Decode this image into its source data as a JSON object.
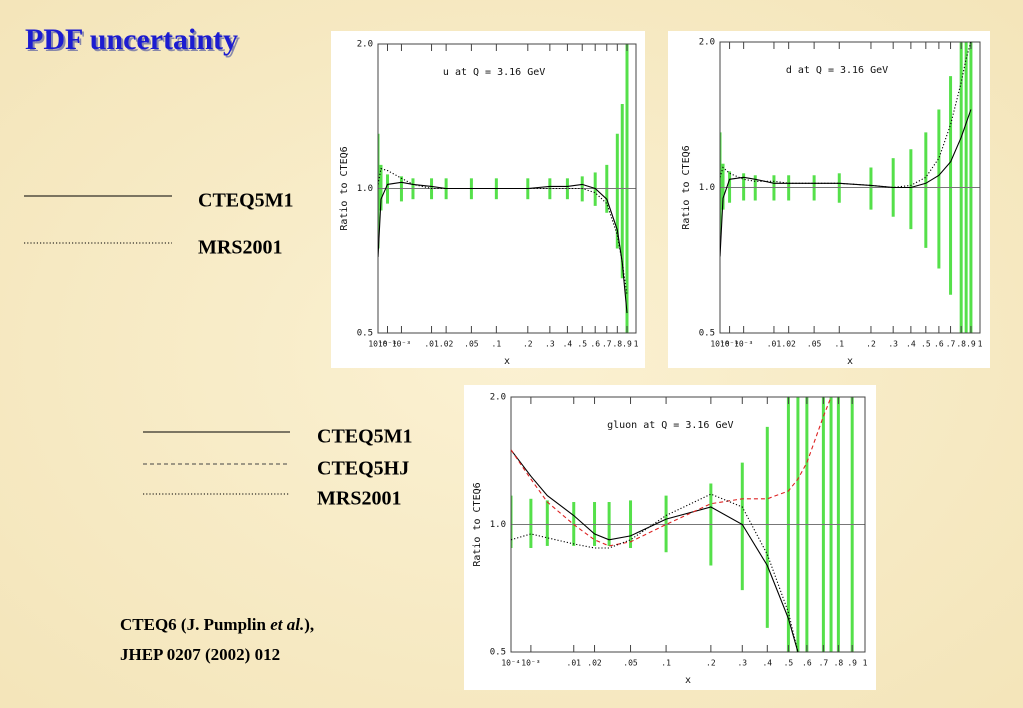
{
  "title": "PDF uncertainty",
  "citation": {
    "line1_before": "CTEQ6 (J. Pumplin ",
    "line1_italic": "et al.",
    "line1_after": "),",
    "line2": "JHEP 0207 (2002) 012"
  },
  "chart_data": [
    {
      "type": "line",
      "title": "u at Q = 3.16 GeV",
      "xlabel": "x",
      "ylabel": "Ratio to CTEQ6",
      "xscale": "cuberoot",
      "yscale": "log",
      "grid": true,
      "xlim": [
        1e-06,
        1
      ],
      "ylim": [
        0.5,
        2
      ],
      "xticks": [
        {
          "value": 1e-06,
          "label": "10⁻⁶"
        },
        {
          "value": 0.0001,
          "label": "10⁻⁴"
        },
        {
          "value": 0.001,
          "label": "10⁻³"
        },
        {
          "value": 0.01,
          "label": ".01"
        },
        {
          "value": 0.02,
          "label": ".02"
        },
        {
          "value": 0.05,
          "label": ".05"
        },
        {
          "value": 0.1,
          "label": ".1"
        },
        {
          "value": 0.2,
          "label": ".2"
        },
        {
          "value": 0.3,
          "label": ".3"
        },
        {
          "value": 0.4,
          "label": ".4"
        },
        {
          "value": 0.5,
          "label": ".5"
        },
        {
          "value": 0.6,
          "label": ".6"
        },
        {
          "value": 0.7,
          "label": ".7"
        },
        {
          "value": 0.8,
          "label": ".8"
        },
        {
          "value": 0.9,
          "label": ".9"
        },
        1
      ],
      "yticks": [
        0.5,
        {
          "value": 1,
          "label": "1.0"
        },
        {
          "value": 2,
          "label": "2.0"
        }
      ],
      "x": [
        1e-06,
        1e-05,
        0.0001,
        0.001,
        0.003,
        0.01,
        0.02,
        0.05,
        0.1,
        0.2,
        0.3,
        0.4,
        0.5,
        0.6,
        0.7,
        0.8,
        0.85,
        0.9
      ],
      "band": {
        "color": "#55e04a",
        "upper": [
          1.3,
          1.12,
          1.07,
          1.06,
          1.05,
          1.05,
          1.05,
          1.05,
          1.05,
          1.05,
          1.05,
          1.05,
          1.06,
          1.08,
          1.12,
          1.3,
          1.5,
          2.0
        ],
        "lower": [
          0.75,
          0.9,
          0.93,
          0.94,
          0.95,
          0.95,
          0.95,
          0.95,
          0.95,
          0.95,
          0.95,
          0.95,
          0.94,
          0.92,
          0.89,
          0.75,
          0.65,
          0.5
        ]
      },
      "series": [
        {
          "name": "CTEQ5M1",
          "color": "#000000",
          "dash": "solid",
          "values": [
            0.72,
            0.95,
            1.02,
            1.03,
            1.02,
            1.01,
            1.0,
            1.0,
            1.0,
            1.0,
            1.01,
            1.01,
            1.02,
            1.0,
            0.95,
            0.82,
            0.7,
            0.55
          ]
        },
        {
          "name": "MRS2001",
          "color": "#000000",
          "dash": "dotted",
          "values": [
            1.02,
            1.1,
            1.09,
            1.05,
            1.02,
            1.0,
            1.0,
            1.0,
            1.0,
            1.0,
            1.0,
            1.0,
            1.0,
            0.98,
            0.93,
            0.8,
            0.7,
            0.6
          ]
        }
      ]
    },
    {
      "type": "line",
      "title": "d at Q = 3.16 GeV",
      "xlabel": "x",
      "ylabel": "Ratio to CTEQ6",
      "xscale": "cuberoot",
      "yscale": "log",
      "grid": true,
      "xlim": [
        1e-06,
        1
      ],
      "ylim": [
        0.5,
        2
      ],
      "xticks": [
        {
          "value": 1e-06,
          "label": "10⁻⁶"
        },
        {
          "value": 0.0001,
          "label": "10⁻⁴"
        },
        {
          "value": 0.001,
          "label": "10⁻³"
        },
        {
          "value": 0.01,
          "label": ".01"
        },
        {
          "value": 0.02,
          "label": ".02"
        },
        {
          "value": 0.05,
          "label": ".05"
        },
        {
          "value": 0.1,
          "label": ".1"
        },
        {
          "value": 0.2,
          "label": ".2"
        },
        {
          "value": 0.3,
          "label": ".3"
        },
        {
          "value": 0.4,
          "label": ".4"
        },
        {
          "value": 0.5,
          "label": ".5"
        },
        {
          "value": 0.6,
          "label": ".6"
        },
        {
          "value": 0.7,
          "label": ".7"
        },
        {
          "value": 0.8,
          "label": ".8"
        },
        {
          "value": 0.9,
          "label": ".9"
        },
        1
      ],
      "yticks": [
        0.5,
        {
          "value": 1,
          "label": "1.0"
        },
        {
          "value": 2,
          "label": "2.0"
        }
      ],
      "x": [
        1e-06,
        1e-05,
        0.0001,
        0.001,
        0.003,
        0.01,
        0.02,
        0.05,
        0.1,
        0.2,
        0.3,
        0.4,
        0.5,
        0.6,
        0.7,
        0.8,
        0.85,
        0.9
      ],
      "band": {
        "color": "#55e04a",
        "upper": [
          1.3,
          1.12,
          1.08,
          1.07,
          1.06,
          1.06,
          1.06,
          1.06,
          1.07,
          1.1,
          1.15,
          1.2,
          1.3,
          1.45,
          1.7,
          2.0,
          2.0,
          2.0
        ],
        "lower": [
          0.8,
          0.9,
          0.93,
          0.94,
          0.94,
          0.94,
          0.94,
          0.94,
          0.93,
          0.9,
          0.87,
          0.82,
          0.75,
          0.68,
          0.6,
          0.5,
          0.5,
          0.5
        ]
      },
      "series": [
        {
          "name": "CTEQ5M1",
          "color": "#000000",
          "dash": "solid",
          "values": [
            0.72,
            0.95,
            1.04,
            1.05,
            1.04,
            1.02,
            1.02,
            1.02,
            1.02,
            1.01,
            1.0,
            1.0,
            1.02,
            1.06,
            1.13,
            1.27,
            1.36,
            1.45
          ]
        },
        {
          "name": "MRS2001",
          "color": "#000000",
          "dash": "dotted",
          "values": [
            1.05,
            1.1,
            1.07,
            1.04,
            1.03,
            1.03,
            1.02,
            1.02,
            1.02,
            1.01,
            1.0,
            1.01,
            1.05,
            1.15,
            1.35,
            1.65,
            1.85,
            2.0
          ]
        }
      ]
    },
    {
      "type": "line",
      "title": "gluon at Q = 3.16 GeV",
      "xlabel": "x",
      "ylabel": "Ratio to CTEQ6",
      "xscale": "cuberoot",
      "yscale": "log",
      "grid": true,
      "xlim": [
        0.0001,
        1
      ],
      "ylim": [
        0.5,
        2
      ],
      "xticks": [
        {
          "value": 0.0001,
          "label": "10⁻⁴"
        },
        {
          "value": 0.001,
          "label": "10⁻³"
        },
        {
          "value": 0.01,
          "label": ".01"
        },
        {
          "value": 0.02,
          "label": ".02"
        },
        {
          "value": 0.05,
          "label": ".05"
        },
        {
          "value": 0.1,
          "label": ".1"
        },
        {
          "value": 0.2,
          "label": ".2"
        },
        {
          "value": 0.3,
          "label": ".3"
        },
        {
          "value": 0.4,
          "label": ".4"
        },
        {
          "value": 0.5,
          "label": ".5"
        },
        {
          "value": 0.6,
          "label": ".6"
        },
        {
          "value": 0.7,
          "label": ".7"
        },
        {
          "value": 0.8,
          "label": ".8"
        },
        {
          "value": 0.9,
          "label": ".9"
        },
        1
      ],
      "yticks": [
        0.5,
        {
          "value": 1,
          "label": "1.0"
        },
        {
          "value": 2,
          "label": "2.0"
        }
      ],
      "x": [
        0.0001,
        0.001,
        0.003,
        0.01,
        0.02,
        0.03,
        0.05,
        0.1,
        0.2,
        0.3,
        0.4,
        0.5,
        0.55,
        0.6,
        0.7,
        0.75,
        0.8,
        0.9
      ],
      "band": {
        "color": "#55e04a",
        "upper": [
          1.17,
          1.15,
          1.14,
          1.13,
          1.13,
          1.13,
          1.14,
          1.17,
          1.25,
          1.4,
          1.7,
          2.0,
          2.0,
          2.0,
          2.0,
          2.0,
          2.0,
          2.0
        ],
        "lower": [
          0.88,
          0.88,
          0.89,
          0.89,
          0.89,
          0.89,
          0.88,
          0.86,
          0.8,
          0.7,
          0.57,
          0.5,
          0.5,
          0.5,
          0.5,
          0.5,
          0.5,
          0.5
        ]
      },
      "series": [
        {
          "name": "CTEQ5M1",
          "color": "#000000",
          "dash": "solid",
          "values": [
            1.5,
            1.3,
            1.17,
            1.05,
            0.95,
            0.92,
            0.94,
            1.03,
            1.1,
            1.0,
            0.8,
            0.6,
            0.5,
            null,
            null,
            null,
            null,
            null
          ]
        },
        {
          "name": "CTEQ5HJ",
          "color": "#dd2222",
          "dash": "dashed",
          "values": [
            1.5,
            1.28,
            1.13,
            1.0,
            0.92,
            0.89,
            0.91,
            1.0,
            1.12,
            1.15,
            1.15,
            1.2,
            1.28,
            1.4,
            1.8,
            2.0,
            null,
            null
          ]
        },
        {
          "name": "MRS2001",
          "color": "#000000",
          "dash": "dotted",
          "values": [
            0.92,
            0.95,
            0.93,
            0.9,
            0.88,
            0.88,
            0.92,
            1.05,
            1.18,
            1.1,
            0.85,
            0.62,
            0.5,
            null,
            null,
            null,
            null,
            null
          ]
        }
      ]
    }
  ]
}
